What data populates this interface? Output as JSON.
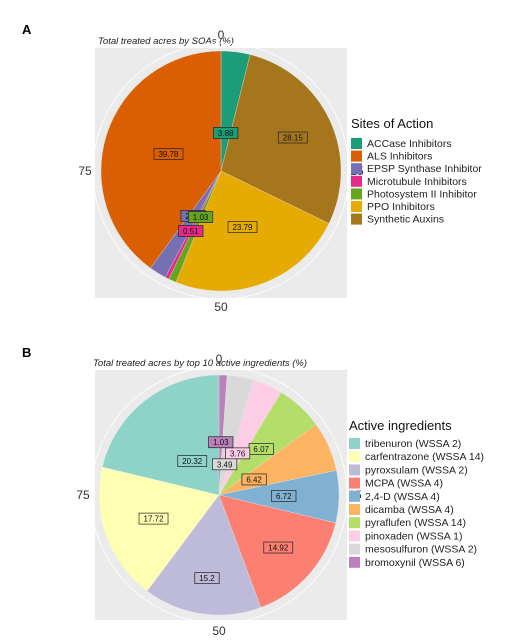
{
  "chart_data": [
    {
      "panel": "A",
      "type": "pie",
      "title": "Total treated acres by SOAs (%)",
      "ticks": [
        "0",
        "25",
        "50",
        "75"
      ],
      "legend_title": "Sites of Action",
      "legend_position": "right",
      "categories": [
        "ACCase Inhibitors",
        "ALS Inhibitors",
        "EPSP Synthase Inhibitor",
        "Microtubule Inhibitors",
        "Photosystem II Inhibitor",
        "PPO Inhibitors",
        "Synthetic Auxins"
      ],
      "values": [
        3.88,
        39.78,
        2.31,
        0.51,
        1.03,
        23.79,
        28.15
      ],
      "labels": [
        "3.88",
        "39.78",
        "2.31",
        "0.51",
        "1.03",
        "23.79",
        "28.15"
      ],
      "colors": [
        "#1b9e77",
        "#d95f02",
        "#7570b3",
        "#e7298a",
        "#66a61e",
        "#e6ab02",
        "#a6761d"
      ],
      "slice_order": [
        0,
        6,
        5,
        4,
        3,
        2,
        1
      ],
      "label_pos": [
        [
          0.32,
          0.82
        ],
        [
          0.46,
          9.3
        ],
        [
          0.44,
          4.7
        ],
        [
          0.56,
          3.2
        ],
        [
          0.42,
          3.3
        ],
        [
          0.5,
          19.0
        ],
        [
          0.66,
          18.0
        ]
      ]
    },
    {
      "panel": "B",
      "type": "pie",
      "title": "Total treated acres by top 10 active ingredients (%)",
      "ticks": [
        "0",
        "25",
        "50",
        "75"
      ],
      "legend_title": "Active ingredients",
      "legend_position": "right",
      "categories": [
        "tribenuron (WSSA 2)",
        "carfentrazone (WSSA 14)",
        "pyroxsulam (WSSA 2)",
        "MCPA (WSSA 4)",
        "2,4-D (WSSA 4)",
        "dicamba (WSSA 4)",
        "pyraflufen (WSSA 14)",
        "pinoxaden (WSSA 1)",
        "mesosulfuron (WSSA 2)",
        "bromoxynil (WSSA 6)"
      ],
      "values": [
        20.32,
        17.72,
        15.2,
        14.92,
        6.72,
        6.42,
        6.07,
        3.76,
        3.49,
        1.03
      ],
      "labels": [
        "20.32",
        "17.72",
        "15.2",
        "14.92",
        "6.72",
        "6.42",
        "6.07",
        "3.76",
        "3.49",
        "1.03"
      ],
      "colors": [
        "#8dd3c7",
        "#ffffb3",
        "#bebada",
        "#fb8072",
        "#80b1d3",
        "#fdb462",
        "#b3de69",
        "#fccde5",
        "#d9d9d9",
        "#bc80bd"
      ],
      "slice_order": [
        9,
        8,
        7,
        6,
        5,
        4,
        3,
        2,
        1,
        0
      ],
      "label_pos": [
        [
          0.36,
          11.2
        ],
        [
          0.58,
          31.8
        ],
        [
          0.7,
          54.0
        ],
        [
          0.66,
          29.8
        ],
        [
          0.54,
          19.7
        ],
        [
          0.32,
          11.6
        ],
        [
          0.52,
          7.0
        ],
        [
          0.38,
          2.4
        ],
        [
          0.26,
          1.0
        ],
        [
          0.44,
          0.98
        ]
      ]
    }
  ]
}
